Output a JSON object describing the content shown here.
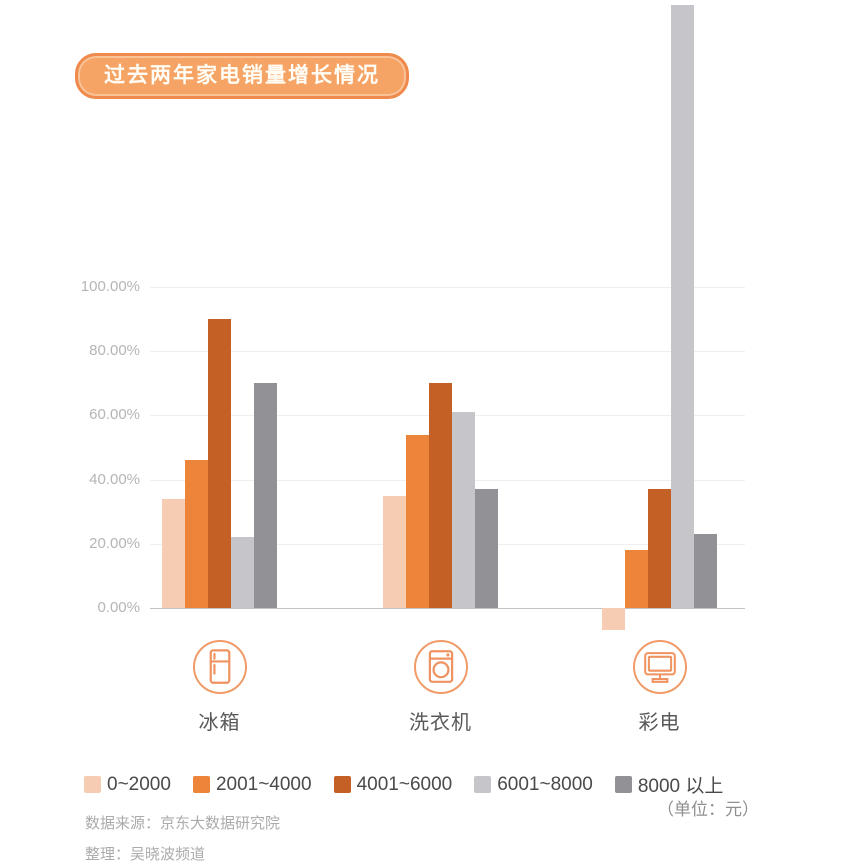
{
  "page": {
    "title_badge": {
      "text": "过去两年家电销量增长情况",
      "bg_color": "#F6A465",
      "border_color": "#EF8A4C",
      "text_color": "#FFFDF6"
    },
    "unit_note": "（单位：元）",
    "source": {
      "line1": "数据来源：京东大数据研究院",
      "line2": "整理：吴晓波频道"
    }
  },
  "chart_data": {
    "type": "bar",
    "title": "过去两年家电销量增长情况",
    "categories": [
      "冰箱",
      "洗衣机",
      "彩电"
    ],
    "category_icons": [
      "fridge-icon",
      "washing-machine-icon",
      "tv-icon"
    ],
    "series": [
      {
        "name": "0~2000",
        "color": "#F6CDB3",
        "values": [
          34,
          35,
          -7
        ]
      },
      {
        "name": "2001~4000",
        "color": "#EC8439",
        "values": [
          46,
          54,
          18
        ]
      },
      {
        "name": "4001~6000",
        "color": "#C45F26",
        "values": [
          90,
          70,
          37
        ]
      },
      {
        "name": "6001~8000",
        "color": "#C6C6CA",
        "values": [
          22,
          61,
          188
        ]
      },
      {
        "name": "8000 以上",
        "color": "#929296",
        "values": [
          70,
          37,
          23
        ]
      }
    ],
    "xlabel": "",
    "ylabel": "",
    "unit_label": "（单位：元）",
    "y_ticks": [
      {
        "label": "100.00%",
        "value": 100
      },
      {
        "label": "80.00%",
        "value": 80
      },
      {
        "label": "60.00%",
        "value": 60
      },
      {
        "label": "40.00%",
        "value": 40
      },
      {
        "label": "20.00%",
        "value": 20
      },
      {
        "label": "0.00%",
        "value": 0
      }
    ],
    "ylim": [
      -10,
      100
    ],
    "grid": true,
    "legend_position": "bottom",
    "notes": "彩电 6001~8000 柱形超出图表顶部（约188%，顶部被裁剪）；彩电 0~2000 为负增长"
  }
}
